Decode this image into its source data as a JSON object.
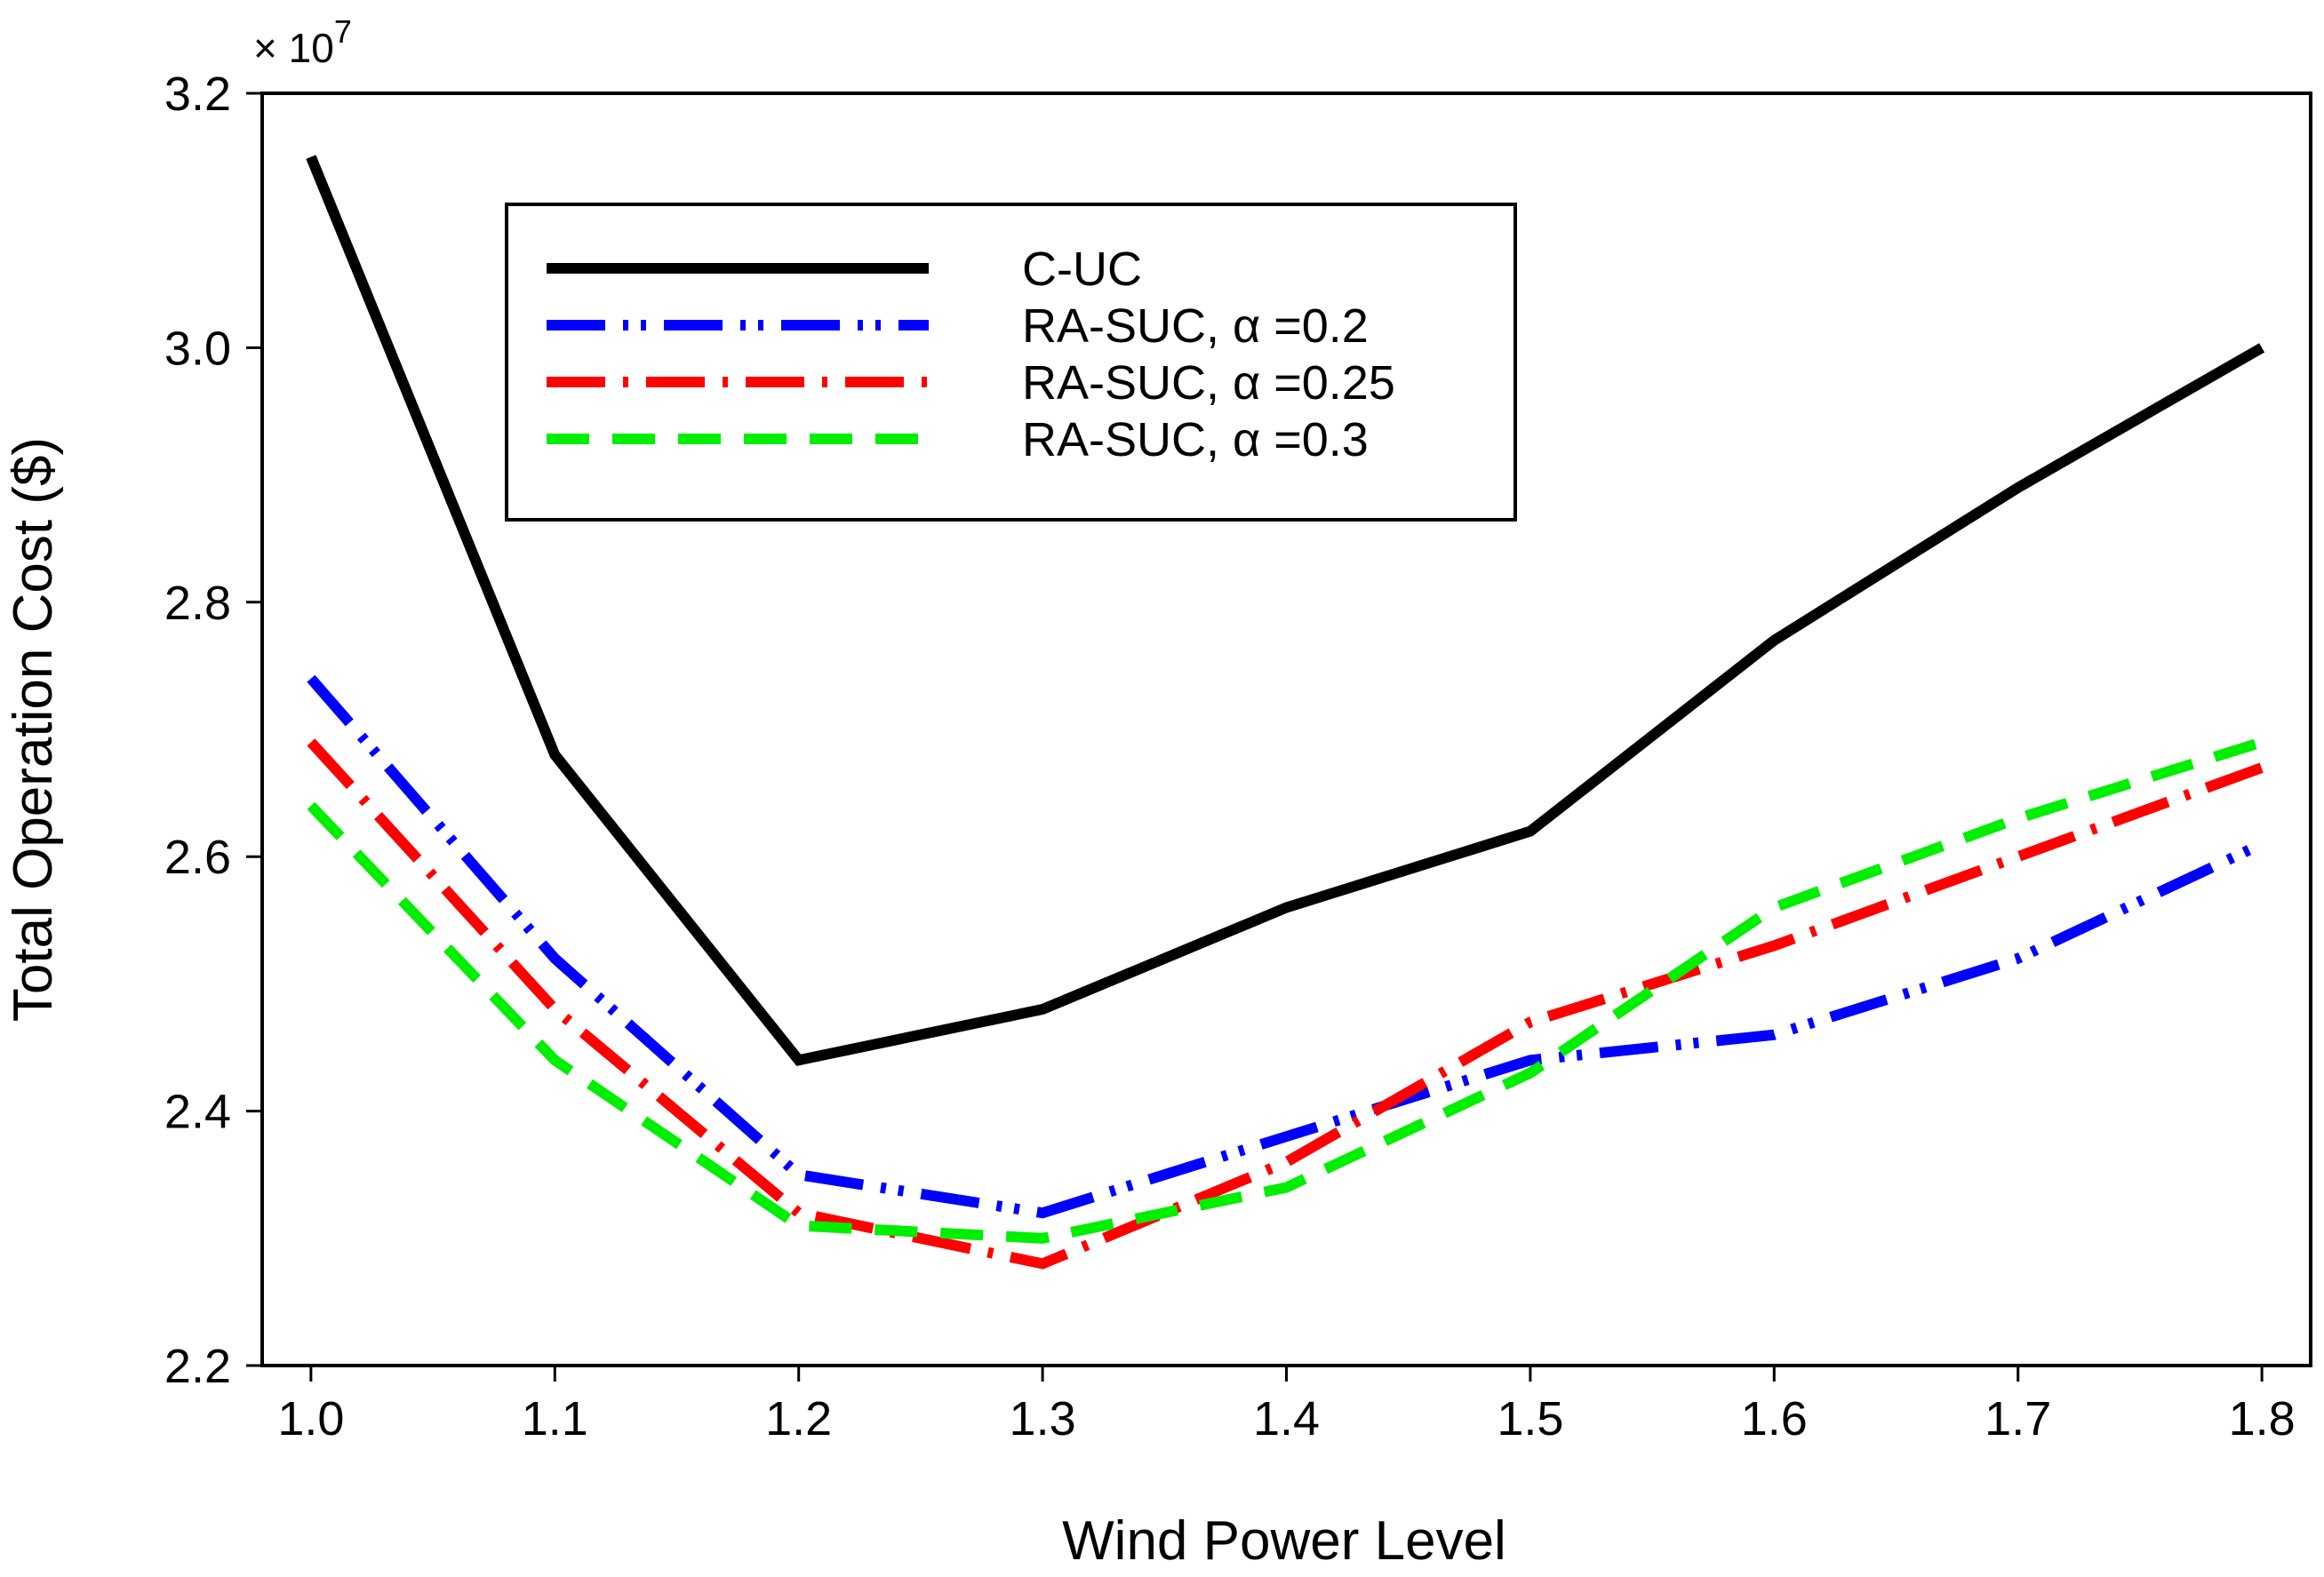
{
  "chart_data": {
    "type": "line",
    "title": "",
    "xlabel": "Wind Power Level",
    "ylabel": "Total Operation Cost ($)",
    "y_multiplier": {
      "prefix": "× 10",
      "exponent": "7"
    },
    "x": [
      1.0,
      1.1,
      1.2,
      1.3,
      1.4,
      1.5,
      1.6,
      1.7,
      1.8
    ],
    "x_tick_labels": [
      "1.0",
      "1.1",
      "1.2",
      "1.3",
      "1.4",
      "1.5",
      "1.6",
      "1.7",
      "1.8"
    ],
    "y_ticks": [
      2.2,
      2.4,
      2.6,
      2.8,
      3.0,
      3.2
    ],
    "y_tick_labels": [
      "2.2",
      "2.4",
      "2.6",
      "2.8",
      "3.0",
      "3.2"
    ],
    "xlim": [
      0.98,
      1.82
    ],
    "ylim": [
      2.2,
      3.2
    ],
    "grid": false,
    "legend_position": "upper-center",
    "series": [
      {
        "name": "C-UC",
        "color": "#000000",
        "style": "solid",
        "values": [
          3.15,
          2.68,
          2.44,
          2.48,
          2.56,
          2.62,
          2.77,
          2.89,
          3.0
        ]
      },
      {
        "name": "RA-SUC, α =0.2",
        "color": "#0000ff",
        "style": "dash-dot-dot",
        "values": [
          2.74,
          2.52,
          2.35,
          2.32,
          2.38,
          2.44,
          2.46,
          2.52,
          2.61
        ]
      },
      {
        "name": "RA-SUC, α =0.25",
        "color": "#ff0000",
        "style": "dash-dot",
        "values": [
          2.69,
          2.48,
          2.32,
          2.28,
          2.36,
          2.47,
          2.53,
          2.6,
          2.67
        ]
      },
      {
        "name": "RA-SUC, α =0.3",
        "color": "#00ee00",
        "style": "dashed",
        "values": [
          2.64,
          2.44,
          2.31,
          2.3,
          2.34,
          2.43,
          2.56,
          2.63,
          2.69
        ]
      }
    ]
  }
}
